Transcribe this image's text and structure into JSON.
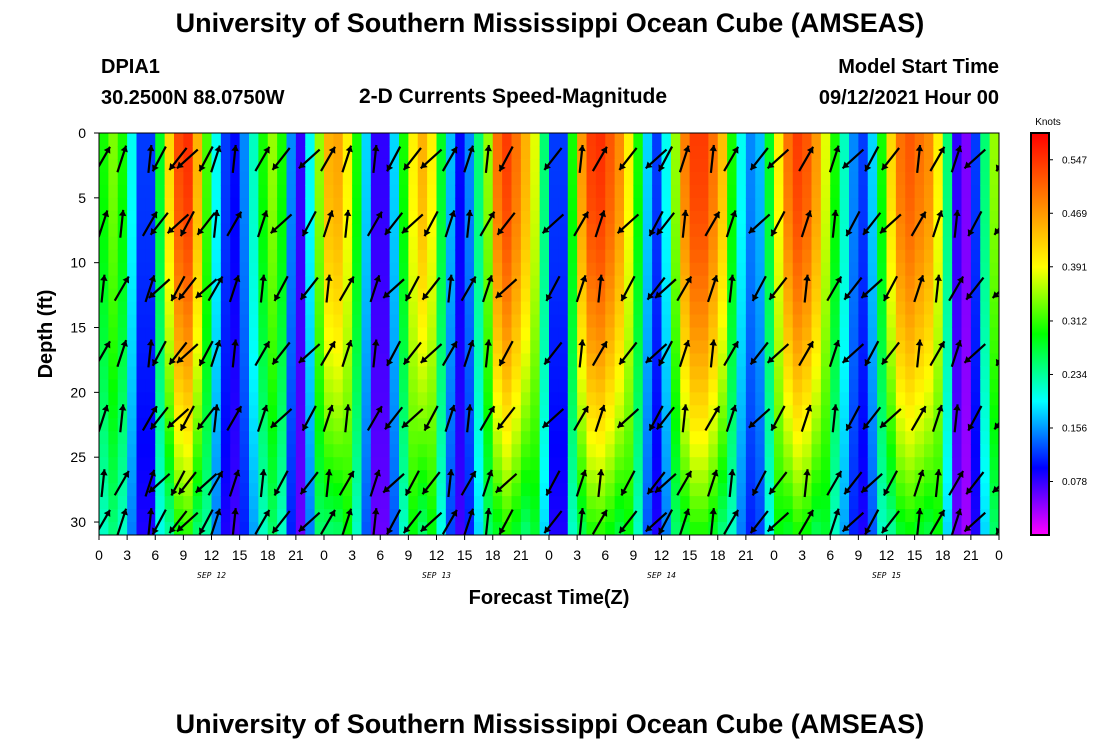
{
  "header": {
    "title": "University of Southern Mississippi Ocean Cube (AMSEAS)",
    "station_id": "DPIA1",
    "station_coords": "30.2500N  88.0750W",
    "product": "2-D Currents Speed-Magnitude",
    "model_start_label": "Model Start Time",
    "model_start_value": "09/12/2021 Hour 00"
  },
  "footer": {
    "title": "University of Southern Mississippi Ocean Cube (AMSEAS)"
  },
  "chart_data": {
    "type": "heatmap",
    "title": "2-D Currents Speed-Magnitude",
    "xlabel": "Forecast Time(Z)",
    "ylabel": "Depth (ft)",
    "x_range_hours": [
      0,
      96
    ],
    "x_tick_step_hours": 3,
    "x_tick_labels": [
      "0",
      "3",
      "6",
      "9",
      "12",
      "15",
      "18",
      "21",
      "0",
      "3",
      "6",
      "9",
      "12",
      "15",
      "18",
      "21",
      "0",
      "3",
      "6",
      "9",
      "12",
      "15",
      "18",
      "21",
      "0",
      "3",
      "6",
      "9",
      "12",
      "15",
      "18",
      "21",
      "0"
    ],
    "date_labels": [
      {
        "label": "SEP 12",
        "hour": 12
      },
      {
        "label": "SEP 13",
        "hour": 36
      },
      {
        "label": "SEP 14",
        "hour": 60
      },
      {
        "label": "SEP 15",
        "hour": 84
      }
    ],
    "y_range_ft": [
      0,
      31
    ],
    "y_ticks": [
      0,
      5,
      10,
      15,
      20,
      25,
      30
    ],
    "colorbar": {
      "unit": "Knots",
      "range": [
        0,
        0.586
      ],
      "ticks": [
        0.078,
        0.156,
        0.234,
        0.312,
        0.391,
        0.469,
        0.547
      ],
      "colors": [
        "#ff00ff",
        "#0000ff",
        "#00ffff",
        "#00ff00",
        "#ffff00",
        "#ff8000",
        "#ff0000"
      ]
    },
    "speed_by_hour_knots": [
      0.3,
      0.34,
      0.3,
      0.2,
      0.12,
      0.12,
      0.28,
      0.42,
      0.53,
      0.55,
      0.45,
      0.32,
      0.2,
      0.12,
      0.1,
      0.15,
      0.22,
      0.3,
      0.35,
      0.3,
      0.15,
      0.08,
      0.2,
      0.35,
      0.45,
      0.46,
      0.4,
      0.3,
      0.18,
      0.08,
      0.08,
      0.18,
      0.3,
      0.4,
      0.45,
      0.4,
      0.28,
      0.17,
      0.1,
      0.15,
      0.25,
      0.35,
      0.5,
      0.54,
      0.5,
      0.45,
      0.38,
      0.25,
      0.12,
      0.12,
      0.3,
      0.47,
      0.54,
      0.55,
      0.52,
      0.48,
      0.4,
      0.3,
      0.18,
      0.12,
      0.2,
      0.35,
      0.49,
      0.54,
      0.54,
      0.5,
      0.44,
      0.3,
      0.2,
      0.15,
      0.17,
      0.28,
      0.4,
      0.5,
      0.54,
      0.52,
      0.47,
      0.38,
      0.3,
      0.22,
      0.15,
      0.12,
      0.18,
      0.3,
      0.42,
      0.5,
      0.52,
      0.5,
      0.48,
      0.4,
      0.25,
      0.08,
      0.05,
      0.12,
      0.25,
      0.35,
      0.3
    ],
    "arrow_columns_hours": [
      0,
      2,
      5,
      6,
      8,
      9,
      11,
      12,
      14,
      17,
      19,
      22,
      24,
      26,
      29,
      31,
      33,
      35,
      37,
      39,
      41,
      43,
      48,
      51,
      53,
      56,
      59,
      60,
      62,
      65,
      67,
      70,
      72,
      75,
      78,
      80,
      82,
      84,
      87,
      89,
      91,
      93,
      96
    ],
    "arrow_direction_note": "flow vectors alternate between southwest-going and northeast-going with the tidal cycle"
  }
}
